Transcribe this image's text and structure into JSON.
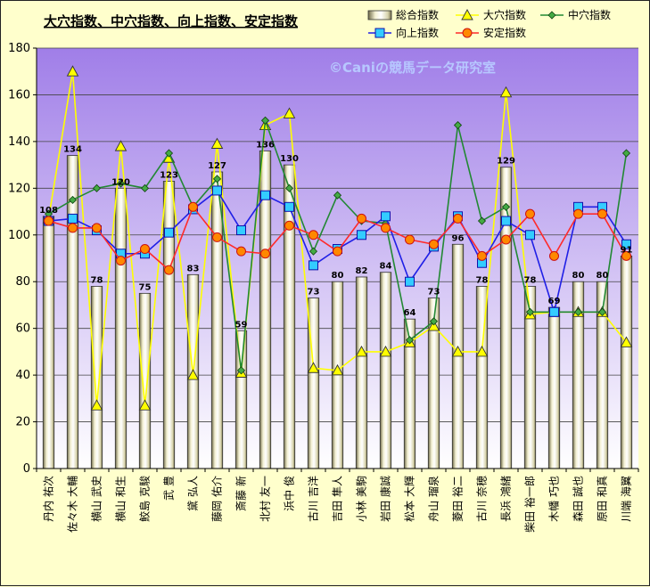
{
  "chart_data": {
    "type": "bar+line",
    "title": "大穴指数、中穴指数、向上指数、安定指数",
    "watermark": "©Caniの競馬データ研究室",
    "ylim": [
      0,
      180
    ],
    "yticks": [
      0,
      20,
      40,
      60,
      80,
      100,
      120,
      140,
      160,
      180
    ],
    "grid": true,
    "legend_position": "top-right",
    "categories": [
      "丹内 祐次",
      "佐々木 大輔",
      "横山 武史",
      "横山 和生",
      "鮫島 克駿",
      "武 豊",
      "黛 弘人",
      "藤岡 佑介",
      "斎藤 新",
      "北村 友一",
      "浜中 俊",
      "古川 吉洋",
      "吉田 隼人",
      "小林 美駒",
      "岩田 康誠",
      "松本 大輝",
      "舟山 瑠泉",
      "菱田 裕二",
      "古川 奈穂",
      "長浜 鴻緒",
      "柴田 裕一郎",
      "木幡 巧也",
      "森田 誠也",
      "原田 和真",
      "川端 海翼"
    ],
    "series": [
      {
        "name": "総合指数",
        "kind": "bar",
        "color": "#ece9c9",
        "values": [
          108,
          134,
          78,
          120,
          75,
          123,
          83,
          127,
          59,
          136,
          130,
          73,
          80,
          82,
          84,
          64,
          73,
          96,
          78,
          129,
          78,
          69,
          80,
          80,
          91
        ]
      },
      {
        "name": "大穴指数",
        "kind": "line",
        "color": "#ffff00",
        "marker": "triangle",
        "values": [
          107,
          170,
          27,
          138,
          27,
          133,
          40,
          139,
          41,
          147,
          152,
          43,
          42,
          50,
          50,
          54,
          61,
          50,
          50,
          161,
          66,
          67,
          67,
          67,
          54
        ]
      },
      {
        "name": "中穴指数",
        "kind": "line",
        "color": "#228833",
        "marker": "diamond",
        "values": [
          109,
          115,
          120,
          122,
          120,
          135,
          112,
          124,
          42,
          149,
          120,
          93,
          117,
          106,
          105,
          55,
          63,
          147,
          106,
          112,
          67,
          67,
          67,
          67,
          135
        ]
      },
      {
        "name": "向上指数",
        "kind": "line",
        "color": "#1f1fe6",
        "marker": "square",
        "values": [
          106,
          107,
          102,
          92,
          92,
          101,
          111,
          119,
          102,
          117,
          112,
          87,
          94,
          100,
          108,
          80,
          95,
          108,
          88,
          106,
          100,
          67,
          112,
          112,
          96
        ]
      },
      {
        "name": "安定指数",
        "kind": "line",
        "color": "#ff2a2a",
        "marker": "circle",
        "values": [
          106,
          103,
          103,
          89,
          94,
          85,
          112,
          99,
          93,
          92,
          104,
          100,
          93,
          107,
          103,
          98,
          96,
          107,
          91,
          98,
          109,
          91,
          109,
          109,
          91
        ]
      }
    ],
    "bar_labels": [
      "108",
      "134",
      "78",
      "120",
      "75",
      "123",
      "83",
      "127",
      "59",
      "136",
      "130",
      "73",
      "80",
      "82",
      "84",
      "64",
      "73",
      "96",
      "78",
      "129",
      "78",
      "69",
      "80",
      "80",
      "91"
    ]
  }
}
